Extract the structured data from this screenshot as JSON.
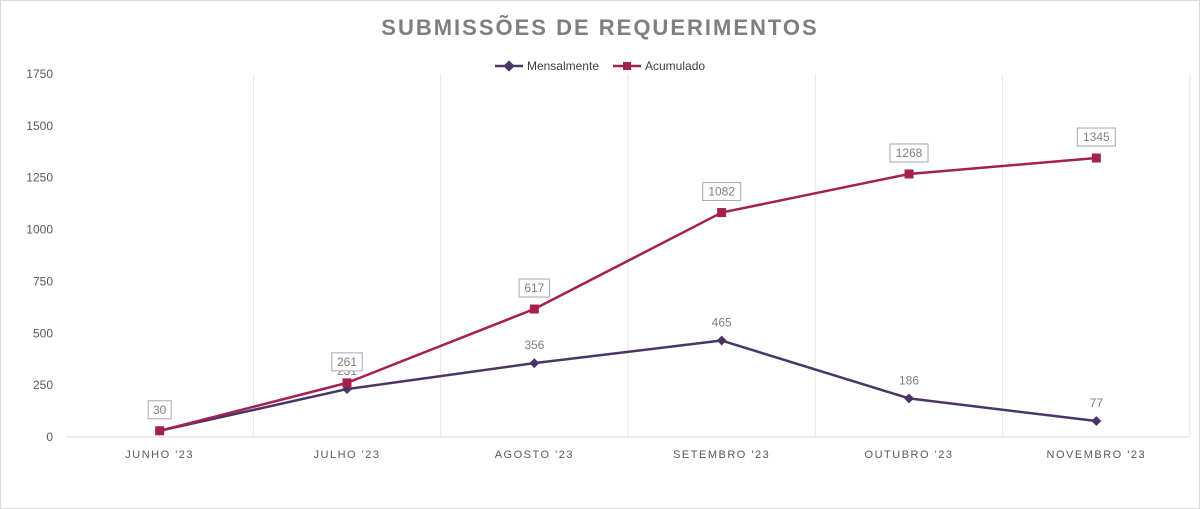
{
  "chart_data": {
    "type": "line",
    "title": "SUBMISSÕES DE REQUERIMENTOS",
    "categories": [
      "JUNHO '23",
      "JULHO '23",
      "AGOSTO '23",
      "SETEMBRO '23",
      "OUTUBRO '23",
      "NOVEMBRO '23"
    ],
    "series": [
      {
        "name": "Mensalmente",
        "values": [
          30,
          231,
          356,
          465,
          186,
          77
        ],
        "color": "#4b3566",
        "marker": "diamond"
      },
      {
        "name": "Acumulado",
        "values": [
          30,
          261,
          617,
          1082,
          1268,
          1345
        ],
        "color": "#a3204f",
        "marker": "square"
      }
    ],
    "ylim": [
      0,
      1750
    ],
    "yticks": [
      0,
      250,
      500,
      750,
      1000,
      1250,
      1500,
      1750
    ],
    "xlabel": "",
    "ylabel": "",
    "grid": "vertical",
    "legend_position": "top"
  }
}
